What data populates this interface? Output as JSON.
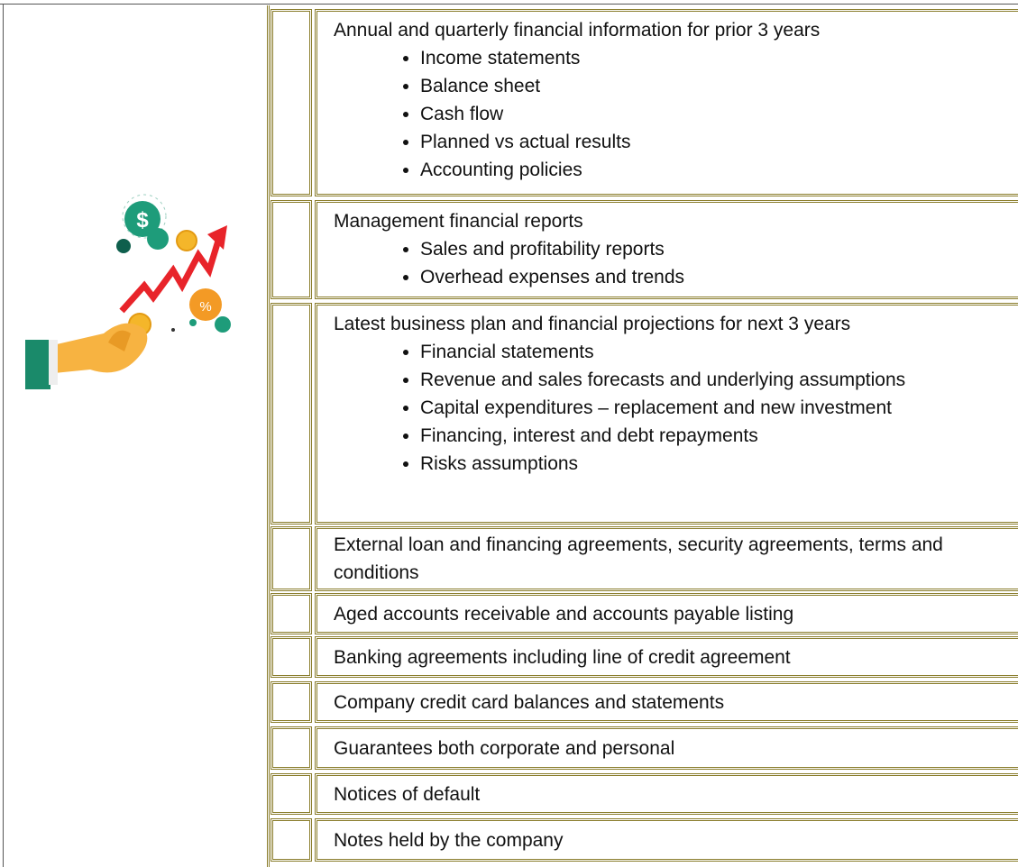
{
  "items": [
    {
      "heading": "Annual and quarterly financial information for prior 3 years",
      "bullets": [
        "Income statements",
        "Balance sheet",
        "Cash flow",
        "Planned vs actual results",
        "Accounting policies"
      ]
    },
    {
      "heading": "Management financial reports",
      "bullets": [
        "Sales and profitability reports",
        "Overhead expenses and trends"
      ]
    },
    {
      "heading": "Latest business plan and financial projections for next 3 years",
      "bullets": [
        "Financial statements",
        "Revenue and sales forecasts and underlying assumptions",
        "Capital expenditures – replacement and new investment",
        "Financing, interest and debt repayments",
        "Risks assumptions"
      ]
    },
    {
      "heading": "External loan and financing agreements, security agreements, terms and conditions"
    },
    {
      "heading": "Aged accounts receivable and accounts payable listing"
    },
    {
      "heading": "Banking agreements including line of credit agreement"
    },
    {
      "heading": "Company credit card balances and statements"
    },
    {
      "heading": "Guarantees both corporate and personal"
    },
    {
      "heading": "Notices of default"
    },
    {
      "heading": "Notes held by the company"
    }
  ]
}
